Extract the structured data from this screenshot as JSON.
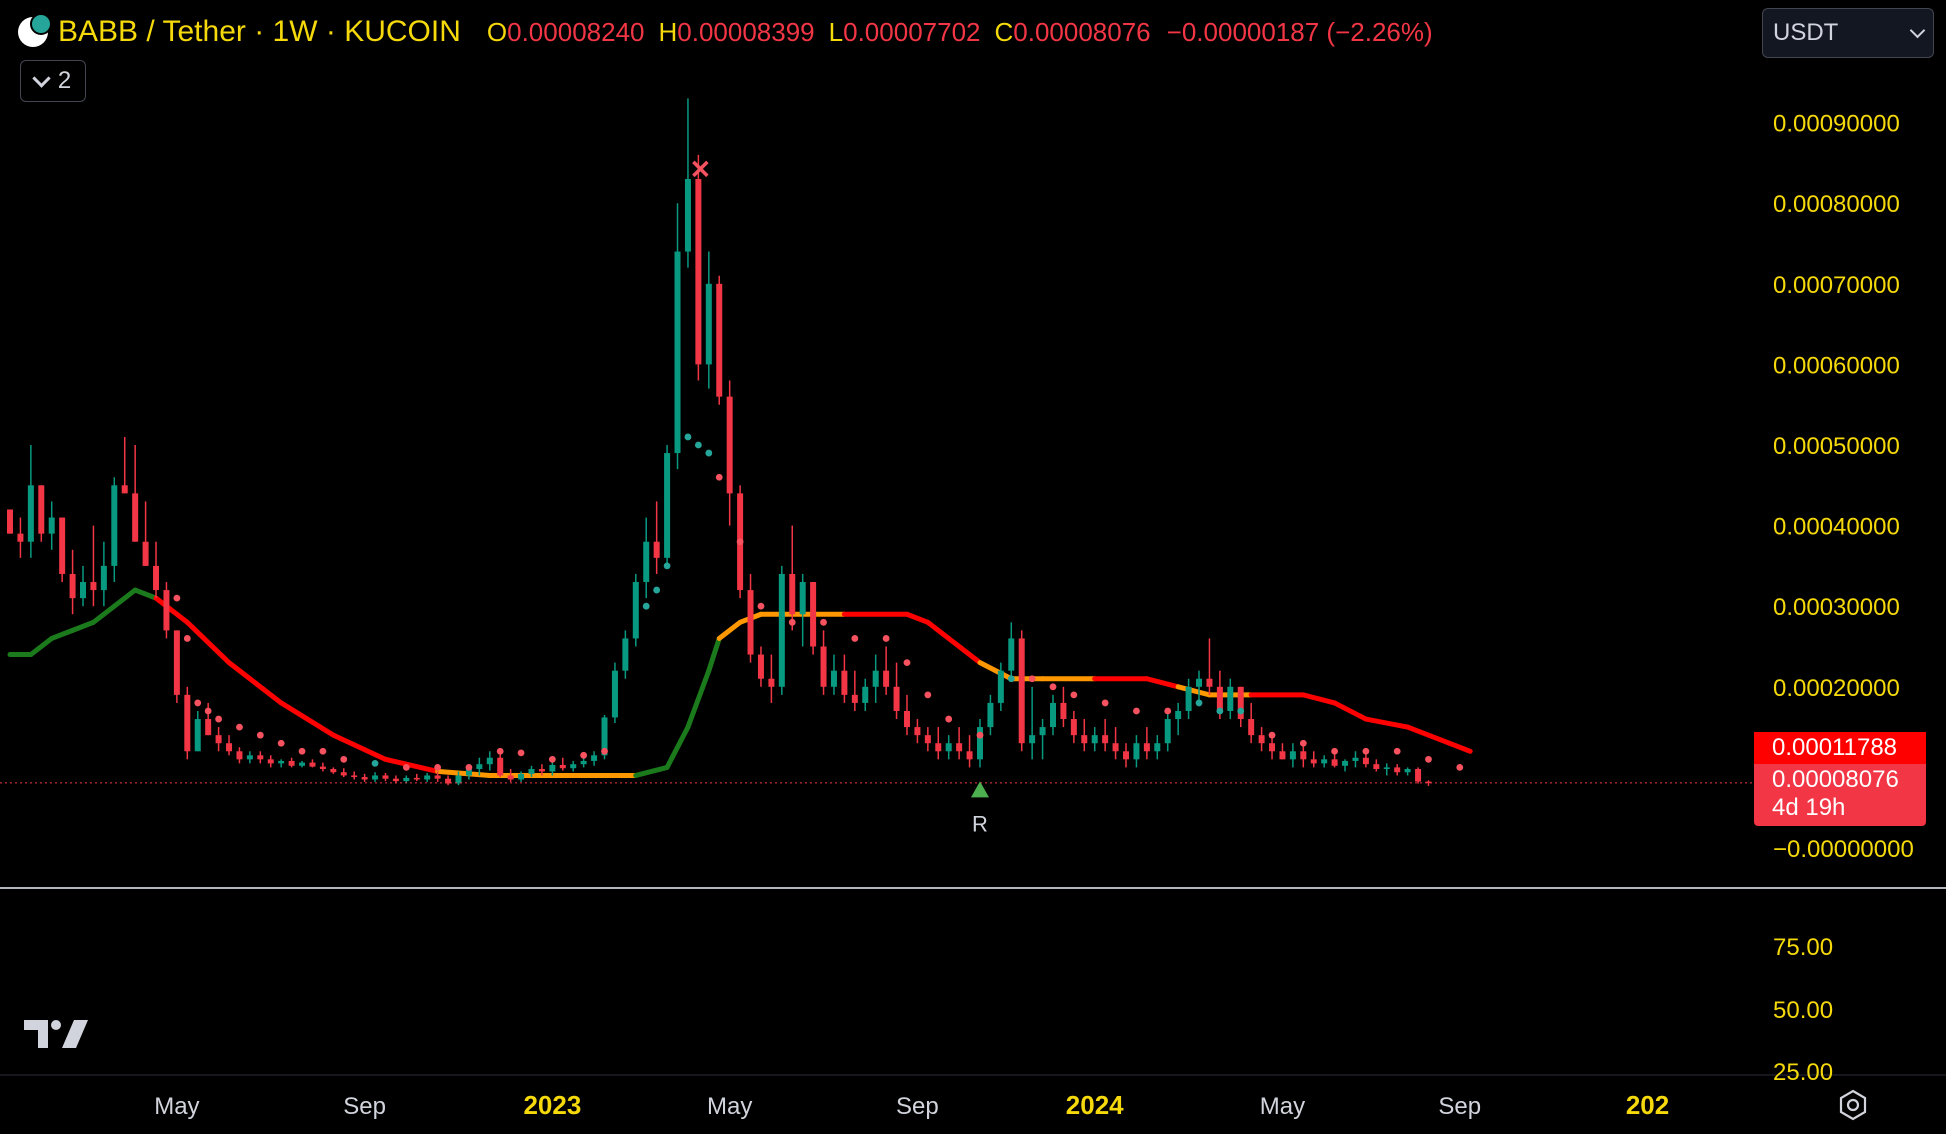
{
  "header": {
    "symbol_title": "BABB / Tether · 1W · KUCOIN",
    "open_label": "O",
    "open_value": "0.00008240",
    "high_label": "H",
    "high_value": "0.00008399",
    "low_label": "L",
    "low_value": "0.00007702",
    "close_label": "C",
    "close_value": "0.00008076",
    "change": "−0.00000187 (−2.26%)"
  },
  "indicator_toggle": {
    "count": "2"
  },
  "currency_select": {
    "value": "USDT"
  },
  "price_tags": {
    "ema_value": "0.00011788",
    "close_value": "0.00008076",
    "countdown": "4d 19h"
  },
  "signal_label": "R",
  "colors": {
    "background": "#000000",
    "up_candle": "#089981",
    "down_candle": "#f23645",
    "axis_text": "#f5d90a",
    "ema_down": "#ff0000",
    "ema_up": "#1b7a1b",
    "ema_flat": "#ff9800"
  },
  "icons": {
    "tv_logo": "tradingview-logo-icon",
    "settings": "gear-icon",
    "signal_up": "triangle-up-icon",
    "signal_exit": "x-mark-icon"
  },
  "chart_data": {
    "type": "candlestick",
    "timeframe": "1W",
    "ylim": [
      0,
      0.00097
    ],
    "y_ticks": [
      "0.00090000",
      "0.00080000",
      "0.00070000",
      "0.00060000",
      "0.00050000",
      "0.00040000",
      "0.00030000",
      "0.00020000",
      "−0.00000000"
    ],
    "y_tick_values": [
      0.0009,
      0.0008,
      0.0007,
      0.0006,
      0.0005,
      0.0004,
      0.0003,
      0.0002,
      0
    ],
    "lower_ticks": [
      "75.00",
      "50.00",
      "25.00"
    ],
    "x_ticks": [
      "May",
      "Sep",
      "2023",
      "May",
      "Sep",
      "2024",
      "May",
      "Sep",
      "202"
    ],
    "x_tick_years": [
      false,
      false,
      true,
      false,
      false,
      true,
      false,
      false,
      true
    ],
    "x_tick_index": [
      16,
      34,
      52,
      69,
      87,
      104,
      122,
      139,
      157
    ],
    "candles": [
      [
        0.00042,
        0.00042,
        0.00039,
        0.00039
      ],
      [
        0.00039,
        0.00041,
        0.00036,
        0.00038
      ],
      [
        0.00038,
        0.0005,
        0.00036,
        0.00045
      ],
      [
        0.00045,
        0.00045,
        0.00038,
        0.00039
      ],
      [
        0.00039,
        0.00043,
        0.00037,
        0.00041
      ],
      [
        0.00041,
        0.00041,
        0.00033,
        0.00034
      ],
      [
        0.00034,
        0.00037,
        0.00029,
        0.00031
      ],
      [
        0.00031,
        0.00035,
        0.0003,
        0.00033
      ],
      [
        0.00033,
        0.0004,
        0.0003,
        0.00032
      ],
      [
        0.00032,
        0.00038,
        0.0003,
        0.00035
      ],
      [
        0.00035,
        0.00046,
        0.00033,
        0.00045
      ],
      [
        0.00045,
        0.00051,
        0.00044,
        0.00044
      ],
      [
        0.00044,
        0.0005,
        0.00038,
        0.00038
      ],
      [
        0.00038,
        0.00043,
        0.00035,
        0.00035
      ],
      [
        0.00035,
        0.00038,
        0.00031,
        0.00032
      ],
      [
        0.00032,
        0.00033,
        0.00026,
        0.00027
      ],
      [
        0.00027,
        0.00027,
        0.00018,
        0.00019
      ],
      [
        0.00019,
        0.0002,
        0.00011,
        0.00012
      ],
      [
        0.00012,
        0.00017,
        0.00012,
        0.00016
      ],
      [
        0.00016,
        0.00018,
        0.00014,
        0.00014
      ],
      [
        0.00014,
        0.00015,
        0.00012,
        0.00013
      ],
      [
        0.00013,
        0.00014,
        0.000115,
        0.00012
      ],
      [
        0.00012,
        0.000125,
        0.000105,
        0.00011
      ],
      [
        0.00011,
        0.00012,
        0.000105,
        0.000115
      ],
      [
        0.000115,
        0.00012,
        0.000105,
        0.00011
      ],
      [
        0.00011,
        0.000115,
        0.0001,
        0.000105
      ],
      [
        0.000105,
        0.00011,
        0.0001,
        0.000108
      ],
      [
        0.000108,
        0.000112,
        0.0001,
        0.000102
      ],
      [
        0.000102,
        0.000108,
        0.0001,
        0.000106
      ],
      [
        0.000106,
        0.00011,
        0.0001,
        0.000101
      ],
      [
        0.000101,
        0.000106,
        9.5e-05,
        9.8e-05
      ],
      [
        9.8e-05,
        0.0001,
        9.2e-05,
        9.4e-05
      ],
      [
        9.4e-05,
        9.9e-05,
        8.8e-05,
        9e-05
      ],
      [
        9e-05,
        9.5e-05,
        8.5e-05,
        8.8e-05
      ],
      [
        8.8e-05,
        9.2e-05,
        8.2e-05,
        8.5e-05
      ],
      [
        8.5e-05,
        9.4e-05,
        8.2e-05,
        9e-05
      ],
      [
        9e-05,
        9.3e-05,
        8.3e-05,
        8.6e-05
      ],
      [
        8.6e-05,
        9e-05,
        8e-05,
        8.3e-05
      ],
      [
        8.3e-05,
        9e-05,
        8e-05,
        8.7e-05
      ],
      [
        8.7e-05,
        9.2e-05,
        8.3e-05,
        8.5e-05
      ],
      [
        8.5e-05,
        9.3e-05,
        8.2e-05,
        9e-05
      ],
      [
        9e-05,
        9.5e-05,
        8.2e-05,
        8.6e-05
      ],
      [
        8.6e-05,
        9e-05,
        7.8e-05,
        8e-05
      ],
      [
        8e-05,
        9.5e-05,
        7.8e-05,
        9e-05
      ],
      [
        9e-05,
        0.0001,
        8.5e-05,
        9.8e-05
      ],
      [
        9.8e-05,
        0.000112,
        9e-05,
        0.000104
      ],
      [
        0.000104,
        0.00012,
        9.6e-05,
        0.000112
      ],
      [
        0.000112,
        0.000116,
        8.8e-05,
        9e-05
      ],
      [
        9e-05,
        9.8e-05,
        8.2e-05,
        8.5e-05
      ],
      [
        8.5e-05,
        9.5e-05,
        8.2e-05,
        9.2e-05
      ],
      [
        9.2e-05,
        0.000102,
        8.8e-05,
        9.8e-05
      ],
      [
        9.8e-05,
        0.000104,
        9e-05,
        9.5e-05
      ],
      [
        9.5e-05,
        0.000108,
        9e-05,
        0.000103
      ],
      [
        0.000103,
        0.000112,
        9.6e-05,
        9.9e-05
      ],
      [
        9.9e-05,
        0.000108,
        9.5e-05,
        0.000104
      ],
      [
        0.000104,
        0.000114,
        0.0001,
        0.000108
      ],
      [
        0.000108,
        0.00012,
        0.000102,
        0.000115
      ],
      [
        0.000115,
        0.000165,
        0.00011,
        0.000162
      ],
      [
        0.000162,
        0.00023,
        0.000155,
        0.00022
      ],
      [
        0.00022,
        0.00027,
        0.00021,
        0.00026
      ],
      [
        0.00026,
        0.00034,
        0.00025,
        0.00033
      ],
      [
        0.00033,
        0.00041,
        0.00031,
        0.00038
      ],
      [
        0.00038,
        0.00043,
        0.00034,
        0.00036
      ],
      [
        0.00036,
        0.0005,
        0.00035,
        0.00049
      ],
      [
        0.00049,
        0.0008,
        0.00047,
        0.00074
      ],
      [
        0.00074,
        0.00093,
        0.00072,
        0.00083
      ],
      [
        0.00083,
        0.00086,
        0.00058,
        0.0006
      ],
      [
        0.0006,
        0.00074,
        0.00057,
        0.0007
      ],
      [
        0.0007,
        0.00071,
        0.00055,
        0.00056
      ],
      [
        0.00056,
        0.00058,
        0.0004,
        0.00044
      ],
      [
        0.00044,
        0.00045,
        0.00031,
        0.00032
      ],
      [
        0.00032,
        0.00034,
        0.00023,
        0.00024
      ],
      [
        0.00024,
        0.00025,
        0.0002,
        0.00021
      ],
      [
        0.00021,
        0.00024,
        0.00018,
        0.0002
      ],
      [
        0.0002,
        0.00035,
        0.00019,
        0.00034
      ],
      [
        0.00034,
        0.0004,
        0.00027,
        0.00029
      ],
      [
        0.00029,
        0.00034,
        0.00025,
        0.00033
      ],
      [
        0.00033,
        0.00033,
        0.00024,
        0.00025
      ],
      [
        0.00025,
        0.00027,
        0.00019,
        0.0002
      ],
      [
        0.0002,
        0.00024,
        0.00019,
        0.00022
      ],
      [
        0.00022,
        0.00024,
        0.00018,
        0.00019
      ],
      [
        0.00019,
        0.00022,
        0.00017,
        0.00018
      ],
      [
        0.00018,
        0.00021,
        0.00017,
        0.0002
      ],
      [
        0.0002,
        0.00024,
        0.00018,
        0.00022
      ],
      [
        0.00022,
        0.00025,
        0.00019,
        0.0002
      ],
      [
        0.0002,
        0.00023,
        0.00016,
        0.00017
      ],
      [
        0.00017,
        0.00019,
        0.00014,
        0.00015
      ],
      [
        0.00015,
        0.00016,
        0.00013,
        0.00014
      ],
      [
        0.00014,
        0.00015,
        0.00012,
        0.00013
      ],
      [
        0.00013,
        0.00015,
        0.00011,
        0.00012
      ],
      [
        0.00012,
        0.00014,
        0.00011,
        0.00013
      ],
      [
        0.00013,
        0.00015,
        0.00011,
        0.00012
      ],
      [
        0.00012,
        0.00014,
        0.0001,
        0.00011
      ],
      [
        0.00011,
        0.00016,
        0.0001,
        0.00015
      ],
      [
        0.00015,
        0.00019,
        0.00014,
        0.00018
      ],
      [
        0.00018,
        0.00023,
        0.00017,
        0.00022
      ],
      [
        0.00022,
        0.00028,
        0.00021,
        0.00026
      ],
      [
        0.00026,
        0.00027,
        0.00012,
        0.00013
      ],
      [
        0.00013,
        0.0002,
        0.00011,
        0.00014
      ],
      [
        0.00014,
        0.00016,
        0.00011,
        0.00015
      ],
      [
        0.00015,
        0.00019,
        0.00014,
        0.00018
      ],
      [
        0.00018,
        0.0002,
        0.00015,
        0.00016
      ],
      [
        0.00016,
        0.00017,
        0.00013,
        0.00014
      ],
      [
        0.00014,
        0.00016,
        0.00012,
        0.00013
      ],
      [
        0.00013,
        0.00015,
        0.00012,
        0.00014
      ],
      [
        0.00014,
        0.00016,
        0.00012,
        0.00013
      ],
      [
        0.00013,
        0.00015,
        0.00011,
        0.00012
      ],
      [
        0.00012,
        0.00013,
        0.0001,
        0.00011
      ],
      [
        0.00011,
        0.00014,
        0.0001,
        0.00013
      ],
      [
        0.00013,
        0.00015,
        0.00011,
        0.00012
      ],
      [
        0.00012,
        0.00014,
        0.00011,
        0.00013
      ],
      [
        0.00013,
        0.00017,
        0.00012,
        0.00016
      ],
      [
        0.00016,
        0.00018,
        0.00014,
        0.00017
      ],
      [
        0.00017,
        0.00021,
        0.00016,
        0.0002
      ],
      [
        0.0002,
        0.00022,
        0.00018,
        0.00021
      ],
      [
        0.00021,
        0.00026,
        0.00019,
        0.0002
      ],
      [
        0.0002,
        0.00022,
        0.00016,
        0.00017
      ],
      [
        0.00017,
        0.00021,
        0.00016,
        0.0002
      ],
      [
        0.0002,
        0.0002,
        0.00015,
        0.00016
      ],
      [
        0.00016,
        0.00018,
        0.00013,
        0.00014
      ],
      [
        0.00014,
        0.00015,
        0.00012,
        0.00013
      ],
      [
        0.00013,
        0.00014,
        0.00011,
        0.00012
      ],
      [
        0.00012,
        0.00013,
        0.00011,
        0.00011
      ],
      [
        0.00011,
        0.00013,
        0.0001,
        0.00012
      ],
      [
        0.00012,
        0.00013,
        0.0001,
        0.00011
      ],
      [
        0.00011,
        0.00012,
        0.0001,
        0.000105
      ],
      [
        0.000105,
        0.000115,
        0.0001,
        0.00011
      ],
      [
        0.00011,
        0.00012,
        0.0001,
        0.000102
      ],
      [
        0.000102,
        0.00011,
        9.5e-05,
        0.000108
      ],
      [
        0.000108,
        0.00012,
        0.0001,
        0.000112
      ],
      [
        0.000112,
        0.000118,
        0.0001,
        0.000104
      ],
      [
        0.000104,
        0.00011,
        9.5e-05,
        9.8e-05
      ],
      [
        9.8e-05,
        0.000105,
        9e-05,
        0.0001
      ],
      [
        0.0001,
        0.000104,
        9e-05,
        9.4e-05
      ],
      [
        9.4e-05,
        0.0001,
        9e-05,
        9.8e-05
      ],
      [
        9.8e-05,
        0.0001,
        8e-05,
        8.24e-05
      ],
      [
        8.24e-05,
        8.4e-05,
        7.7e-05,
        8.08e-05
      ]
    ],
    "ema_points": [
      [
        0,
        0.00024
      ],
      [
        2,
        0.00024
      ],
      [
        4,
        0.00026
      ],
      [
        6,
        0.00027
      ],
      [
        8,
        0.00028
      ],
      [
        10,
        0.0003
      ],
      [
        12,
        0.00032
      ],
      [
        14,
        0.00031
      ],
      [
        17,
        0.00028
      ],
      [
        21,
        0.00023
      ],
      [
        26,
        0.00018
      ],
      [
        31,
        0.00014
      ],
      [
        36,
        0.00011
      ],
      [
        41,
        9.5e-05
      ],
      [
        46,
        9e-05
      ],
      [
        50,
        9e-05
      ],
      [
        55,
        9e-05
      ],
      [
        60,
        9e-05
      ],
      [
        63,
        0.0001
      ],
      [
        65,
        0.00015
      ],
      [
        67,
        0.00022
      ],
      [
        68,
        0.00026
      ],
      [
        70,
        0.00028
      ],
      [
        72,
        0.00029
      ],
      [
        80,
        0.00029
      ],
      [
        86,
        0.00029
      ],
      [
        88,
        0.00028
      ],
      [
        90,
        0.00026
      ],
      [
        93,
        0.00023
      ],
      [
        96,
        0.00021
      ],
      [
        99,
        0.00021
      ],
      [
        104,
        0.00021
      ],
      [
        109,
        0.00021
      ],
      [
        112,
        0.0002
      ],
      [
        115,
        0.00019
      ],
      [
        119,
        0.00019
      ],
      [
        124,
        0.00019
      ],
      [
        127,
        0.00018
      ],
      [
        130,
        0.00016
      ],
      [
        134,
        0.00015
      ],
      [
        138,
        0.00013
      ],
      [
        140,
        0.00012
      ]
    ],
    "ema_colors": [
      "up",
      "up",
      "up",
      "up",
      "up",
      "up",
      "up",
      "down",
      "down",
      "down",
      "down",
      "down",
      "down",
      "flat",
      "flat",
      "flat",
      "flat",
      "up",
      "up",
      "up",
      "up",
      "flat",
      "flat",
      "flat",
      "down",
      "down",
      "down",
      "down",
      "flat",
      "flat",
      "flat",
      "down",
      "down",
      "flat",
      "flat",
      "down",
      "down",
      "down",
      "down",
      "down",
      "down"
    ],
    "dots": [
      [
        16,
        0.00031,
        "down"
      ],
      [
        17,
        0.00026,
        "down"
      ],
      [
        18,
        0.00018,
        "down"
      ],
      [
        19,
        0.00017,
        "down"
      ],
      [
        20,
        0.00016,
        "down"
      ],
      [
        22,
        0.00015,
        "down"
      ],
      [
        24,
        0.00014,
        "down"
      ],
      [
        26,
        0.00013,
        "down"
      ],
      [
        28,
        0.00012,
        "down"
      ],
      [
        30,
        0.00012,
        "down"
      ],
      [
        32,
        0.00011,
        "down"
      ],
      [
        35,
        0.000105,
        "up"
      ],
      [
        38,
        0.0001,
        "down"
      ],
      [
        41,
        0.0001,
        "down"
      ],
      [
        44,
        0.0001,
        "down"
      ],
      [
        47,
        0.00012,
        "down"
      ],
      [
        49,
        0.000118,
        "down"
      ],
      [
        52,
        0.00011,
        "down"
      ],
      [
        55,
        0.000115,
        "down"
      ],
      [
        57,
        0.00012,
        "down"
      ],
      [
        61,
        0.0003,
        "up"
      ],
      [
        62,
        0.00032,
        "up"
      ],
      [
        63,
        0.00035,
        "up"
      ],
      [
        65,
        0.00051,
        "up"
      ],
      [
        66,
        0.0005,
        "up"
      ],
      [
        67,
        0.00049,
        "up"
      ],
      [
        68,
        0.00046,
        "down"
      ],
      [
        70,
        0.00038,
        "down"
      ],
      [
        72,
        0.0003,
        "down"
      ],
      [
        75,
        0.00028,
        "down"
      ],
      [
        78,
        0.00028,
        "down"
      ],
      [
        81,
        0.00026,
        "down"
      ],
      [
        84,
        0.00026,
        "down"
      ],
      [
        86,
        0.00023,
        "down"
      ],
      [
        88,
        0.00019,
        "down"
      ],
      [
        90,
        0.00016,
        "down"
      ],
      [
        93,
        0.00014,
        "down"
      ],
      [
        96,
        0.00021,
        "up"
      ],
      [
        98,
        0.00021,
        "down"
      ],
      [
        100,
        0.0002,
        "down"
      ],
      [
        102,
        0.00019,
        "down"
      ],
      [
        105,
        0.00018,
        "down"
      ],
      [
        108,
        0.00017,
        "down"
      ],
      [
        111,
        0.00017,
        "down"
      ],
      [
        114,
        0.00018,
        "up"
      ],
      [
        116,
        0.00017,
        "up"
      ],
      [
        118,
        0.00017,
        "up"
      ],
      [
        121,
        0.00014,
        "down"
      ],
      [
        124,
        0.00013,
        "down"
      ],
      [
        127,
        0.00012,
        "down"
      ],
      [
        130,
        0.00012,
        "down"
      ],
      [
        133,
        0.00012,
        "down"
      ],
      [
        136,
        0.00011,
        "down"
      ],
      [
        139,
        0.0001,
        "down"
      ]
    ],
    "signals": [
      {
        "index": 93,
        "kind": "up",
        "label": "R"
      },
      {
        "index": 66,
        "kind": "exit"
      }
    ]
  }
}
